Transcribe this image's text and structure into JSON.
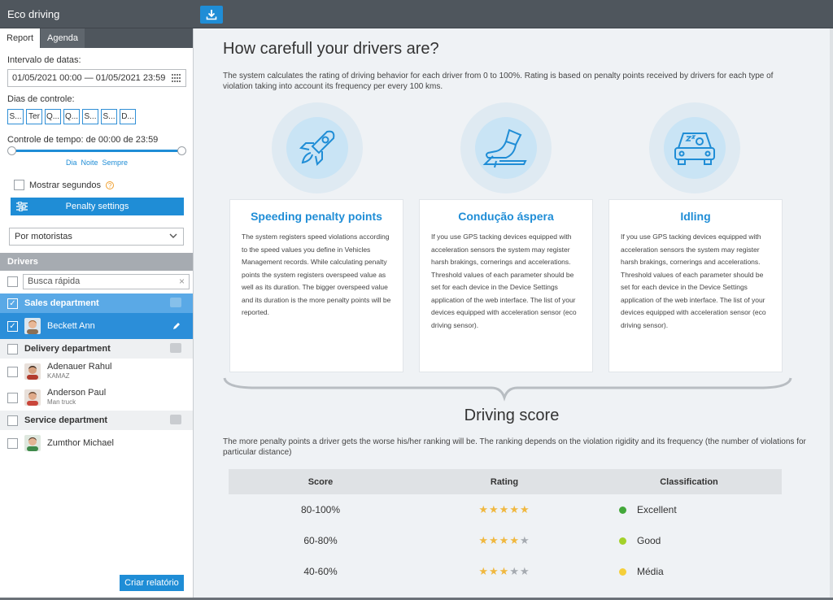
{
  "app": {
    "title": "Eco driving"
  },
  "sidebar": {
    "tabs": [
      {
        "label": "Report"
      },
      {
        "label": "Agenda"
      }
    ],
    "date_label": "Intervalo de datas:",
    "date_value": "01/05/2021 00:00 — 01/05/2021 23:59",
    "days_label": "Dias de controle:",
    "days": [
      "S...",
      "Ter",
      "Q...",
      "Q...",
      "S...",
      "S...",
      "D..."
    ],
    "time_label": "Controle de tempo: de 00:00 de 23:59",
    "time_links": [
      "Dia",
      "Noite",
      "Sempre"
    ],
    "show_seconds": "Mostrar segundos",
    "penalty_button": "Penalty settings",
    "group_by": "Por motoristas",
    "drivers_header": "Drivers",
    "search_placeholder": "Busca rápida",
    "groups": [
      {
        "name": "Sales department",
        "drivers": [
          {
            "name": "Beckett Ann",
            "vehicle": ""
          }
        ]
      },
      {
        "name": "Delivery department",
        "drivers": [
          {
            "name": "Adenauer Rahul",
            "vehicle": "KAMAZ"
          },
          {
            "name": "Anderson Paul",
            "vehicle": "Man truck"
          }
        ]
      },
      {
        "name": "Service department",
        "drivers": [
          {
            "name": "Zumthor Michael",
            "vehicle": ""
          }
        ]
      }
    ],
    "create_button": "Criar relatório"
  },
  "main": {
    "title": "How carefull your drivers are?",
    "intro": "The system calculates the rating of driving behavior for each driver from 0 to 100%. Rating is based on penalty points received by drivers for each type of violation taking into account its frequency per every 100 kms.",
    "cards": [
      {
        "icon": "rocket-icon",
        "title": "Speeding penalty points",
        "text": "The system registers speed violations according to the speed values you define in Vehicles Management records. While calculating penalty points the system registers overspeed value as well as its duration. The bigger overspeed value and its duration is the more penalty points will be reported."
      },
      {
        "icon": "pedal-icon",
        "title": "Condução áspera",
        "text": "If you use GPS tacking devices equipped with acceleration sensors the system may register harsh brakings, cornerings and accelerations. Threshold values of each parameter should be set for each device in the Device Settings application of the web interface. The list of your devices equipped with acceleration sensor (eco driving sensor)."
      },
      {
        "icon": "sleeping-driver-icon",
        "title": "Idling",
        "text": "If you use GPS tacking devices equipped with acceleration sensors the system may register harsh brakings, cornerings and accelerations. Threshold values of each parameter should be set for each device in the Device Settings application of the web interface. The list of your devices equipped with acceleration sensor (eco driving sensor)."
      }
    ],
    "score_title": "Driving score",
    "score_desc": "The more penalty points a driver gets the worse his/her ranking will be. The ranking depends on the violation rigidity and its frequency (the number of violations for particular distance)",
    "table": {
      "headers": [
        "Score",
        "Rating",
        "Classification"
      ],
      "rows": [
        {
          "score": "80-100%",
          "stars": 5,
          "class": "Excellent",
          "color": "#43a83a"
        },
        {
          "score": "60-80%",
          "stars": 4,
          "class": "Good",
          "color": "#a3d12a"
        },
        {
          "score": "40-60%",
          "stars": 3,
          "class": "Média",
          "color": "#f5cf3a"
        }
      ]
    }
  }
}
